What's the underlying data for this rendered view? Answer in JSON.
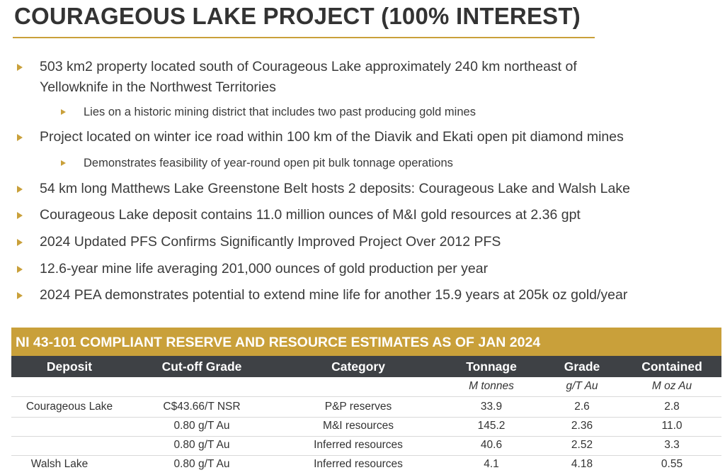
{
  "title": "COURAGEOUS LAKE PROJECT (100% INTEREST)",
  "bullets": [
    {
      "text": "503 km2 property located south of Courageous Lake approximately 240 km northeast of",
      "continuation": "Yellowknife in the Northwest Territories"
    },
    {
      "text": "Lies on a historic mining district that includes two past producing gold mines"
    },
    {
      "text": "Project located on winter ice road within 100 km of the Diavik and Ekati open pit diamond mines"
    },
    {
      "text": "Demonstrates feasibility of year-round open pit bulk tonnage operations"
    },
    {
      "text": "54 km long Matthews Lake Greenstone Belt hosts 2 deposits: Courageous Lake and Walsh Lake"
    },
    {
      "text": "Courageous Lake deposit contains 11.0 million ounces of M&I gold resources at 2.36 gpt"
    },
    {
      "text": "2024 Updated PFS Confirms Significantly Improved Project Over 2012 PFS"
    },
    {
      "text": "12.6-year mine life averaging 201,000 ounces of gold production per year"
    },
    {
      "text": "2024 PEA demonstrates potential to extend mine life for another 15.9 years at 205k oz gold/year"
    }
  ],
  "table": {
    "title": "NI 43-101 COMPLIANT RESERVE AND RESOURCE ESTIMATES AS OF JAN 2024",
    "columns": [
      "Deposit",
      "Cut-off Grade",
      "Category",
      "Tonnage",
      "Grade",
      "Contained"
    ],
    "units": [
      "",
      "",
      "",
      "M tonnes",
      "g/T Au",
      "M oz Au"
    ],
    "rows": [
      [
        "Courageous Lake",
        "C$43.66/T NSR",
        "P&P reserves",
        "33.9",
        "2.6",
        "2.8"
      ],
      [
        "",
        "0.80 g/T Au",
        "M&I resources",
        "145.2",
        "2.36",
        "11.0"
      ],
      [
        "",
        "0.80 g/T Au",
        "Inferred resources",
        "40.6",
        "2.52",
        "3.3"
      ],
      [
        "Walsh Lake",
        "0.80 g/T Au",
        "Inferred resources",
        "4.1",
        "4.18",
        "0.55"
      ]
    ]
  },
  "colors": {
    "accent": "#c9a03a",
    "table_header_dark": "#3e4145",
    "text": "#333333"
  }
}
